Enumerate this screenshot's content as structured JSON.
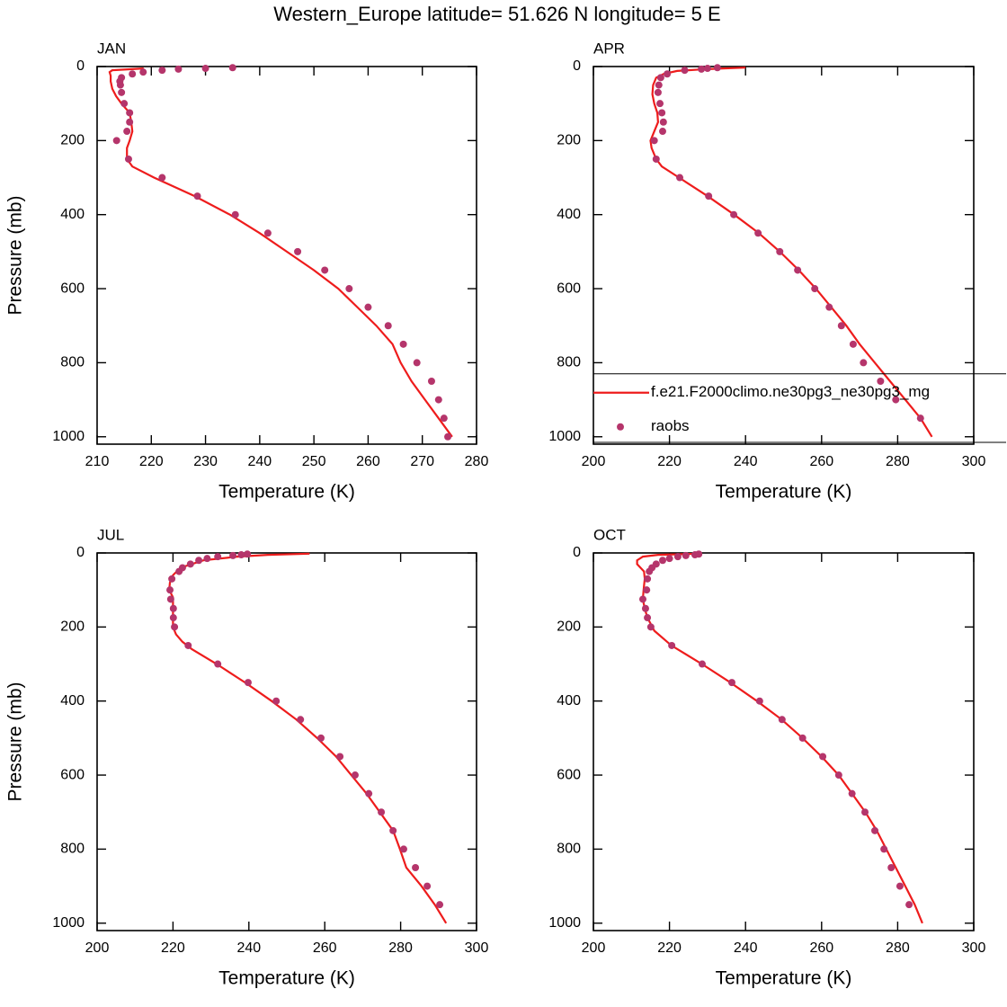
{
  "title": "Western_Europe  latitude= 51.626 N longitude= 5 E",
  "chart_data": [
    {
      "type": "line",
      "panel_label": "JAN",
      "xlabel": "Temperature (K)",
      "ylabel": "Pressure (mb)",
      "xlim": [
        210,
        280
      ],
      "xticks": [
        210,
        220,
        230,
        240,
        250,
        260,
        270,
        280
      ],
      "ylim": [
        1020,
        0
      ],
      "yticks": [
        0,
        200,
        400,
        600,
        800,
        1000
      ],
      "series": [
        {
          "color": "#ee1c1c",
          "style": "line",
          "x": [
            275.5,
            273,
            270.5,
            268,
            266,
            264.5,
            261.5,
            258,
            254.5,
            250,
            245,
            240,
            234.5,
            228,
            220.5,
            216.5,
            215.5,
            215.5,
            216,
            216.5,
            216.3,
            216,
            214.5,
            213.5,
            212.8,
            212.5,
            212.5,
            212.3,
            212.8,
            218.6
          ],
          "values": [
            1000,
            950,
            900,
            850,
            800,
            750,
            700,
            650,
            600,
            550,
            500,
            450,
            400,
            350,
            300,
            270,
            250,
            220,
            200,
            175,
            150,
            125,
            100,
            80,
            60,
            40,
            25,
            15,
            10,
            5
          ]
        },
        {
          "color": "#b5356b",
          "style": "markers",
          "x": [
            274.7,
            274,
            273,
            271.7,
            269,
            266.5,
            263.7,
            260,
            256.5,
            252,
            247,
            241.5,
            235.5,
            228.5,
            222,
            215.8,
            213.6,
            215.5,
            216,
            216,
            215,
            214.5,
            214.3,
            214.2,
            214.5,
            216.5,
            218.5,
            222,
            225,
            230,
            235
          ],
          "values": [
            1000,
            950,
            900,
            850,
            800,
            750,
            700,
            650,
            600,
            550,
            500,
            450,
            400,
            350,
            300,
            250,
            200,
            175,
            150,
            125,
            100,
            70,
            50,
            40,
            30,
            20,
            15,
            10,
            7,
            5,
            3
          ]
        }
      ]
    },
    {
      "type": "line",
      "panel_label": "APR",
      "xlabel": "Temperature (K)",
      "xlim": [
        200,
        300
      ],
      "xticks": [
        200,
        220,
        240,
        260,
        280,
        300
      ],
      "ylim": [
        1020,
        0
      ],
      "yticks": [
        0,
        200,
        400,
        600,
        800,
        1000
      ],
      "legend": "lower-right",
      "series": [
        {
          "name": "f.e21.F2000climo.ne30pg3_ne30pg3_mg",
          "color": "#ee1c1c",
          "style": "line",
          "x": [
            289,
            286,
            282,
            278,
            274,
            270,
            266.5,
            262.5,
            258.5,
            254,
            249,
            243.5,
            237,
            230,
            222.5,
            218,
            216.5,
            215.3,
            215,
            216,
            217,
            216.8,
            216,
            215.5,
            215.7,
            216.5,
            218.5,
            222,
            228,
            234,
            240
          ],
          "values": [
            1000,
            950,
            900,
            850,
            800,
            750,
            700,
            650,
            600,
            550,
            500,
            450,
            400,
            350,
            300,
            270,
            250,
            220,
            200,
            175,
            150,
            125,
            100,
            75,
            50,
            30,
            20,
            12,
            8,
            5,
            3
          ]
        },
        {
          "name": "raobs",
          "color": "#b5356b",
          "style": "markers",
          "x": [
            286,
            279.5,
            275.5,
            271,
            268.3,
            265.2,
            262,
            258.2,
            253.7,
            249,
            243.3,
            236.9,
            230.3,
            222.7,
            216.5,
            216,
            218.2,
            218.4,
            218,
            217.5,
            217,
            217.2,
            217.7,
            219.4,
            224,
            228.4,
            230,
            232.6
          ],
          "values": [
            950,
            900,
            850,
            800,
            750,
            700,
            650,
            600,
            550,
            500,
            450,
            400,
            350,
            300,
            250,
            200,
            175,
            150,
            125,
            100,
            70,
            50,
            30,
            20,
            10,
            7,
            5,
            3
          ]
        }
      ]
    },
    {
      "type": "line",
      "panel_label": "JUL",
      "xlabel": "Temperature (K)",
      "ylabel": "Pressure (mb)",
      "xlim": [
        200,
        300
      ],
      "xticks": [
        200,
        220,
        240,
        260,
        280,
        300
      ],
      "ylim": [
        1020,
        0
      ],
      "yticks": [
        0,
        200,
        400,
        600,
        800,
        1000
      ],
      "series": [
        {
          "color": "#ee1c1c",
          "style": "line",
          "x": [
            292,
            289,
            285.5,
            281.5,
            279.8,
            278,
            274.5,
            271,
            267,
            263,
            258,
            252.5,
            246,
            239,
            231.5,
            225,
            222.5,
            220.8,
            220,
            220,
            220,
            219,
            219.2,
            220,
            222,
            228,
            237,
            245,
            256
          ],
          "values": [
            1000,
            950,
            900,
            850,
            800,
            750,
            700,
            650,
            600,
            550,
            500,
            450,
            400,
            350,
            300,
            260,
            240,
            220,
            200,
            150,
            120,
            100,
            80,
            60,
            40,
            20,
            10,
            5,
            2
          ]
        },
        {
          "color": "#b5356b",
          "style": "markers",
          "x": [
            290.3,
            287,
            283.9,
            280.8,
            278,
            274.9,
            271.6,
            268,
            264,
            259,
            253.6,
            247.2,
            239.8,
            231.8,
            224,
            220.4,
            220.1,
            220.1,
            219.4,
            219.2,
            219.7,
            221.6,
            222.5,
            224.6,
            226.8,
            229,
            231.8,
            235.8,
            238,
            239.6
          ],
          "values": [
            950,
            900,
            850,
            800,
            750,
            700,
            650,
            600,
            550,
            500,
            450,
            400,
            350,
            300,
            250,
            200,
            175,
            150,
            125,
            100,
            70,
            50,
            40,
            30,
            20,
            15,
            10,
            7,
            5,
            3
          ]
        }
      ]
    },
    {
      "type": "line",
      "panel_label": "OCT",
      "xlabel": "Temperature (K)",
      "xlim": [
        200,
        300
      ],
      "xticks": [
        200,
        220,
        240,
        260,
        280,
        300
      ],
      "ylim": [
        1020,
        0
      ],
      "yticks": [
        0,
        200,
        400,
        600,
        800,
        1000
      ],
      "series": [
        {
          "color": "#ee1c1c",
          "style": "line",
          "x": [
            286.5,
            284.5,
            282,
            279.5,
            277,
            274.5,
            271.5,
            268,
            264.5,
            260,
            255,
            249.5,
            243,
            236,
            228.5,
            220.5,
            216,
            215.5,
            214.2,
            213.5,
            213,
            213.2,
            213.5,
            213.3,
            211.5,
            211.5,
            213,
            217,
            228
          ],
          "values": [
            1000,
            950,
            900,
            850,
            800,
            750,
            700,
            650,
            600,
            550,
            500,
            450,
            400,
            350,
            300,
            250,
            210,
            200,
            175,
            150,
            125,
            100,
            70,
            50,
            30,
            20,
            10,
            5,
            2
          ]
        },
        {
          "color": "#b5356b",
          "style": "markers",
          "x": [
            283,
            280.6,
            278.3,
            276.4,
            274,
            271.4,
            268,
            264.5,
            260.3,
            255,
            249.6,
            243.7,
            236.4,
            228.6,
            220.6,
            215.1,
            214.2,
            213.7,
            213,
            214,
            214.2,
            214.7,
            215.4,
            216.5,
            218.2,
            220,
            222.2,
            224.3,
            226.7,
            227.7
          ],
          "values": [
            950,
            900,
            850,
            800,
            750,
            700,
            650,
            600,
            550,
            500,
            450,
            400,
            350,
            300,
            250,
            200,
            175,
            150,
            125,
            100,
            70,
            50,
            40,
            30,
            20,
            15,
            10,
            7,
            5,
            3
          ]
        }
      ]
    }
  ]
}
